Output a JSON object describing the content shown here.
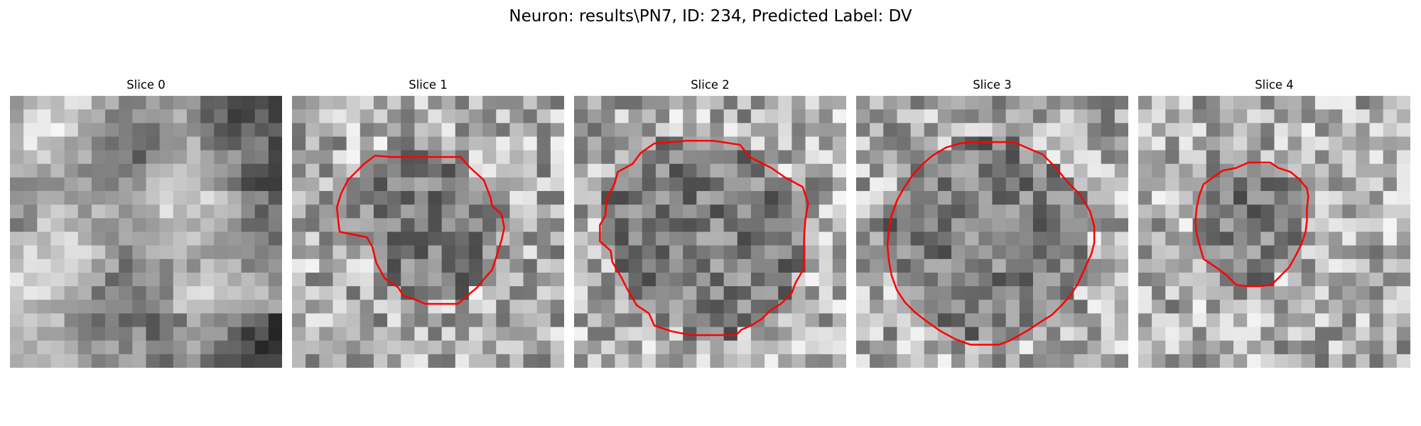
{
  "figure": {
    "title": "Neuron: results\\PN7, ID: 234, Predicted Label: DV",
    "panels": [
      {
        "title": "Slice 0",
        "contour": [],
        "seed": 11
      },
      {
        "title": "Slice 1",
        "seed": 23,
        "contour": [
          [
            9.5,
            4.5
          ],
          [
            12.4,
            4.5
          ],
          [
            13.0,
            5.2
          ],
          [
            14.1,
            6.2
          ],
          [
            14.6,
            7.5
          ],
          [
            14.7,
            8.1
          ],
          [
            15.4,
            8.7
          ],
          [
            15.6,
            9.7
          ],
          [
            15.4,
            10.6
          ],
          [
            15.0,
            11.9
          ],
          [
            14.7,
            12.8
          ],
          [
            14.0,
            13.6
          ],
          [
            13.6,
            14.1
          ],
          [
            13.0,
            14.6
          ],
          [
            12.2,
            15.3
          ],
          [
            9.8,
            15.3
          ],
          [
            9.1,
            15.0
          ],
          [
            8.2,
            14.7
          ],
          [
            7.8,
            14.1
          ],
          [
            6.8,
            13.4
          ],
          [
            6.2,
            12.3
          ],
          [
            5.9,
            11.1
          ],
          [
            5.5,
            10.4
          ],
          [
            3.5,
            10.0
          ],
          [
            3.4,
            9.2
          ],
          [
            3.3,
            8.2
          ],
          [
            3.6,
            7.2
          ],
          [
            4.1,
            6.2
          ],
          [
            4.9,
            5.4
          ],
          [
            5.3,
            5.0
          ],
          [
            6.1,
            4.4
          ],
          [
            7.3,
            4.5
          ]
        ]
      },
      {
        "title": "Slice 2",
        "seed": 37,
        "contour": [
          [
            8.3,
            3.3
          ],
          [
            10.2,
            3.3
          ],
          [
            12.2,
            3.6
          ],
          [
            12.9,
            4.5
          ],
          [
            14.5,
            5.3
          ],
          [
            15.5,
            6.0
          ],
          [
            16.8,
            6.7
          ],
          [
            17.2,
            7.9
          ],
          [
            17.0,
            9.1
          ],
          [
            16.9,
            10.4
          ],
          [
            16.9,
            11.6
          ],
          [
            16.9,
            12.7
          ],
          [
            16.3,
            13.7
          ],
          [
            16.0,
            14.5
          ],
          [
            15.2,
            15.3
          ],
          [
            14.4,
            15.8
          ],
          [
            13.8,
            16.4
          ],
          [
            13.0,
            16.9
          ],
          [
            12.3,
            17.2
          ],
          [
            11.9,
            17.6
          ],
          [
            10.3,
            17.6
          ],
          [
            8.6,
            17.6
          ],
          [
            7.1,
            17.3
          ],
          [
            5.9,
            16.9
          ],
          [
            5.5,
            16.0
          ],
          [
            4.6,
            15.4
          ],
          [
            3.9,
            14.2
          ],
          [
            3.5,
            13.4
          ],
          [
            2.8,
            12.2
          ],
          [
            2.7,
            11.4
          ],
          [
            1.9,
            10.7
          ],
          [
            1.9,
            9.5
          ],
          [
            2.3,
            8.8
          ],
          [
            2.4,
            7.6
          ],
          [
            3.0,
            6.4
          ],
          [
            3.2,
            5.6
          ],
          [
            4.3,
            5.0
          ],
          [
            4.9,
            4.2
          ],
          [
            5.9,
            3.5
          ],
          [
            7.2,
            3.4
          ]
        ]
      },
      {
        "title": "Slice 3",
        "seed": 49,
        "contour": [
          [
            8.5,
            3.4
          ],
          [
            11.6,
            3.4
          ],
          [
            12.5,
            3.8
          ],
          [
            13.7,
            4.3
          ],
          [
            14.6,
            5.2
          ],
          [
            15.6,
            6.4
          ],
          [
            16.4,
            7.2
          ],
          [
            17.2,
            8.5
          ],
          [
            17.5,
            9.6
          ],
          [
            17.5,
            10.8
          ],
          [
            17.3,
            11.6
          ],
          [
            16.8,
            12.7
          ],
          [
            16.3,
            13.8
          ],
          [
            15.8,
            14.6
          ],
          [
            15.2,
            15.3
          ],
          [
            14.4,
            16.1
          ],
          [
            13.6,
            16.6
          ],
          [
            12.7,
            17.2
          ],
          [
            12.0,
            17.6
          ],
          [
            11.3,
            18.0
          ],
          [
            10.5,
            18.3
          ],
          [
            8.4,
            18.3
          ],
          [
            7.3,
            17.9
          ],
          [
            6.2,
            17.3
          ],
          [
            5.2,
            16.6
          ],
          [
            4.3,
            15.9
          ],
          [
            3.6,
            15.2
          ],
          [
            3.0,
            14.3
          ],
          [
            2.6,
            13.2
          ],
          [
            2.4,
            12.1
          ],
          [
            2.3,
            11.0
          ],
          [
            2.4,
            9.9
          ],
          [
            2.6,
            8.8
          ],
          [
            3.0,
            7.7
          ],
          [
            3.5,
            6.8
          ],
          [
            4.1,
            5.9
          ],
          [
            4.8,
            5.1
          ],
          [
            5.6,
            4.4
          ],
          [
            6.6,
            3.8
          ],
          [
            7.6,
            3.5
          ]
        ]
      },
      {
        "title": "Slice 4",
        "seed": 61,
        "contour": [
          [
            8.1,
            4.9
          ],
          [
            9.7,
            4.9
          ],
          [
            10.3,
            5.3
          ],
          [
            11.2,
            5.6
          ],
          [
            11.8,
            6.1
          ],
          [
            12.4,
            6.8
          ],
          [
            12.5,
            7.4
          ],
          [
            12.4,
            8.3
          ],
          [
            12.4,
            9.2
          ],
          [
            12.3,
            10.0
          ],
          [
            12.0,
            10.9
          ],
          [
            11.6,
            11.7
          ],
          [
            11.1,
            12.6
          ],
          [
            10.4,
            13.3
          ],
          [
            9.8,
            13.9
          ],
          [
            8.9,
            14.0
          ],
          [
            8.0,
            14.0
          ],
          [
            7.2,
            13.9
          ],
          [
            6.5,
            13.2
          ],
          [
            5.7,
            12.6
          ],
          [
            4.8,
            12.0
          ],
          [
            4.6,
            11.3
          ],
          [
            4.3,
            10.2
          ],
          [
            4.2,
            9.3
          ],
          [
            4.3,
            8.2
          ],
          [
            4.5,
            7.3
          ],
          [
            4.8,
            6.5
          ],
          [
            5.5,
            6.0
          ],
          [
            6.2,
            5.5
          ],
          [
            7.2,
            5.3
          ]
        ]
      }
    ]
  },
  "image": {
    "grid_size": 20
  },
  "colors": {
    "contour": "#ff0000",
    "background": "#ffffff"
  }
}
